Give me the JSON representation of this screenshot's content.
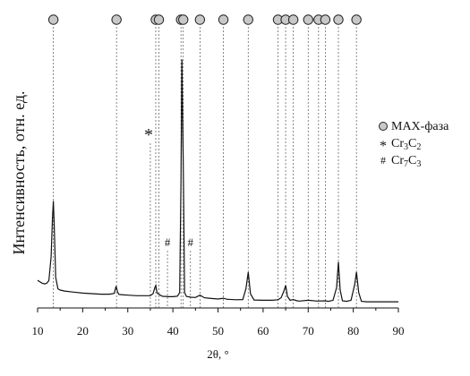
{
  "chart_data": {
    "type": "line",
    "title": "",
    "xlabel": "2θ, °",
    "ylabel": "Интенсивность, отн. ед.",
    "xlim": [
      10,
      90
    ],
    "xticks": [
      10,
      20,
      30,
      40,
      50,
      60,
      70,
      80,
      90
    ],
    "ylim": [
      0,
      1.0
    ],
    "y_ticks_shown": false,
    "grid": false,
    "legend_position": "right",
    "legend": [
      {
        "symbol": "circle",
        "label": "MAX-фаза",
        "marker": "●"
      },
      {
        "symbol": "asterisk",
        "label": "Cr3C2",
        "marker": "*",
        "formula": {
          "a": "Cr",
          "an": "3",
          "b": "C",
          "bn": "2"
        }
      },
      {
        "symbol": "hash",
        "label": "Cr7C3",
        "marker": "#",
        "formula": {
          "a": "Cr",
          "an": "7",
          "b": "C",
          "bn": "3"
        }
      }
    ],
    "max_phase_peaks": [
      13.5,
      27.5,
      36.2,
      36.9,
      41.8,
      42.3,
      46.0,
      51.2,
      56.7,
      63.3,
      65.0,
      66.7,
      70.0,
      72.3,
      73.8,
      76.7,
      80.7
    ],
    "cr3c2_peaks": [
      35.0
    ],
    "cr7c3_peaks": [
      38.8,
      43.9
    ],
    "series": [
      {
        "x": [
          10,
          10.5,
          11,
          11.5,
          12,
          12.5,
          13.0,
          13.3,
          13.5,
          13.7,
          14.0,
          14.5,
          15,
          16,
          18,
          20,
          22,
          24,
          26,
          27.0,
          27.4,
          27.7,
          28.0,
          28.5,
          30,
          32,
          34,
          35.0,
          35.6,
          36.0,
          36.2,
          36.5,
          36.9,
          37.2,
          37.6,
          38.0,
          38.5,
          39.0,
          40.0,
          40.5,
          41.0,
          41.5,
          41.8,
          42.0,
          42.3,
          42.6,
          43.0,
          44.0,
          45.0,
          46.0,
          47.0,
          48.0,
          50.0,
          51.2,
          52.0,
          54.0,
          55.5,
          56.2,
          56.7,
          57.2,
          58.0,
          60.0,
          62.0,
          63.3,
          64.0,
          64.6,
          65.0,
          65.4,
          66.0,
          66.7,
          67.5,
          68.0,
          70.0,
          72.0,
          73.8,
          74.5,
          75.5,
          76.3,
          76.7,
          77.1,
          77.6,
          78.5,
          79.5,
          80.3,
          80.7,
          81.2,
          81.8,
          83.0,
          85.0,
          87.0,
          90.0
        ],
        "y": [
          0.108,
          0.102,
          0.097,
          0.094,
          0.096,
          0.107,
          0.2,
          0.35,
          0.418,
          0.32,
          0.12,
          0.075,
          0.07,
          0.066,
          0.062,
          0.058,
          0.056,
          0.054,
          0.054,
          0.057,
          0.085,
          0.064,
          0.053,
          0.052,
          0.05,
          0.048,
          0.048,
          0.048,
          0.056,
          0.08,
          0.088,
          0.058,
          0.054,
          0.05,
          0.046,
          0.045,
          0.045,
          0.044,
          0.044,
          0.045,
          0.046,
          0.06,
          0.5,
          0.97,
          0.56,
          0.06,
          0.045,
          0.042,
          0.041,
          0.05,
          0.04,
          0.038,
          0.035,
          0.038,
          0.034,
          0.032,
          0.033,
          0.075,
          0.14,
          0.055,
          0.031,
          0.03,
          0.03,
          0.032,
          0.04,
          0.065,
          0.088,
          0.045,
          0.03,
          0.033,
          0.028,
          0.027,
          0.03,
          0.027,
          0.028,
          0.026,
          0.03,
          0.08,
          0.18,
          0.07,
          0.028,
          0.026,
          0.03,
          0.09,
          0.14,
          0.06,
          0.026,
          0.024,
          0.024,
          0.024,
          0.024
        ]
      }
    ]
  }
}
